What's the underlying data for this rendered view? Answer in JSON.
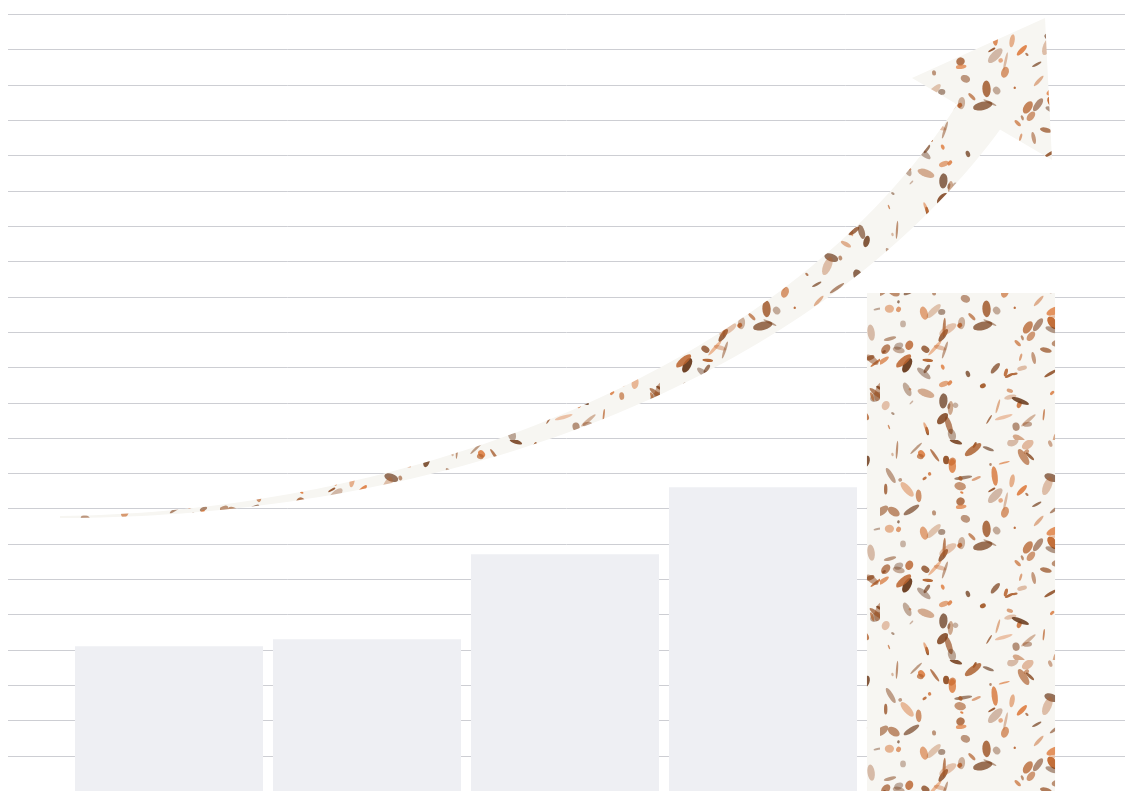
{
  "chart_data": {
    "type": "bar",
    "categories": [
      null,
      null,
      null,
      null,
      null
    ],
    "values": [
      4.1,
      4.3,
      6.7,
      8.6,
      14.1
    ],
    "colors": [
      "#eeeff3",
      "#eeeff3",
      "#eeeff3",
      "#eeeff3",
      "#b5612c"
    ],
    "ylim": [
      0,
      22
    ],
    "yticks": [
      0,
      1,
      2,
      3,
      4,
      5,
      6,
      7,
      8,
      9,
      10,
      11,
      12,
      13,
      14,
      15,
      16,
      17,
      18,
      19,
      20,
      21,
      22
    ],
    "grid": true,
    "tick_labels": false
  }
}
